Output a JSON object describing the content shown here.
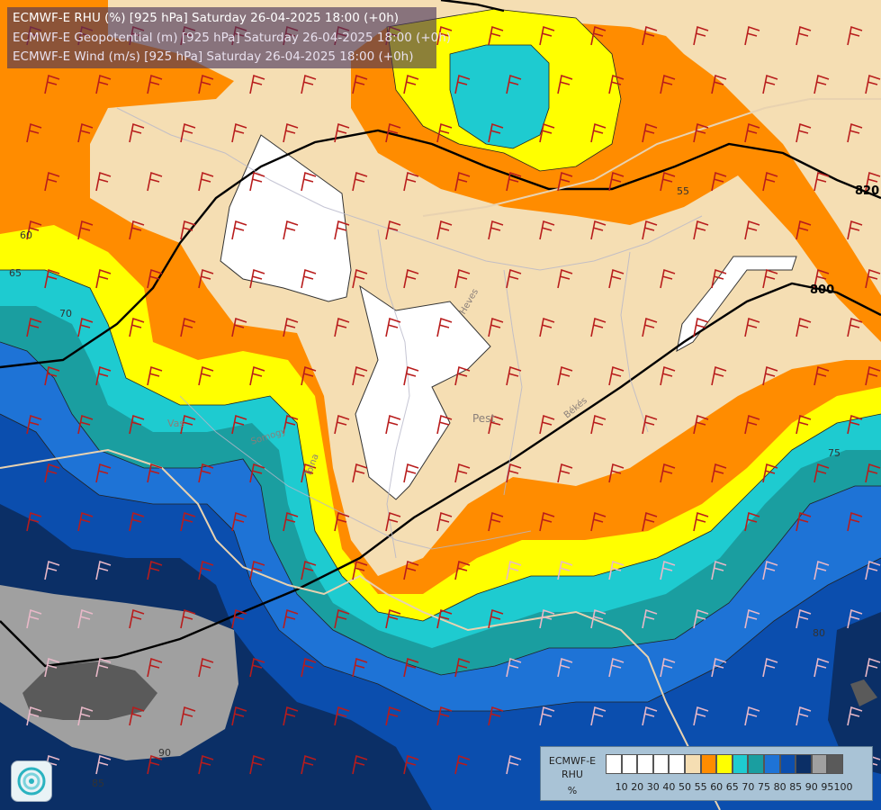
{
  "header": {
    "line1": "ECMWF-E RHU (%) [925 hPa] Saturday 26-04-2025 18:00 (+0h)",
    "line2": "ECMWF-E Geopotential (m) [925 hPa] Saturday 26-04-2025 18:00 (+0h)",
    "line3": "ECMWF-E Wind (m/s) [925 hPa] Saturday 26-04-2025 18:00 (+0h)"
  },
  "legend": {
    "title1": "ECMWF-E",
    "title2": "RHU",
    "title3": "%",
    "ticks": [
      "10",
      "20",
      "30",
      "40",
      "50",
      "55",
      "60",
      "65",
      "70",
      "75",
      "80",
      "85",
      "90",
      "95",
      "100"
    ],
    "colors": [
      "#ffffff",
      "#ffffff",
      "#ffffff",
      "#ffffff",
      "#ffffff",
      "#f5deb3",
      "#ff8c00",
      "#ffff00",
      "#1ecbd0",
      "#1a9ea0",
      "#1e73d6",
      "#0b4eae",
      "#0b2f66",
      "#a0a0a0",
      "#5a5a5a"
    ]
  },
  "contour_labels": {
    "geo_820": "820",
    "geo_800": "800",
    "rhu_55": "55",
    "rhu_60": "60",
    "rhu_65": "65",
    "rhu_70": "70",
    "rhu_75": "75",
    "rhu_80": "80",
    "rhu_90": "90",
    "rhu_85": "85"
  },
  "place_labels": {
    "pest": "Pest",
    "vas": "Vas",
    "heves": "Heves",
    "somogy": "Somogy",
    "tolna": "Tolna",
    "bekes": "Békés"
  },
  "map_colors": {
    "rhu_50": "#f5deb3",
    "rhu_55": "#ff8c00",
    "rhu_60": "#ffff00",
    "rhu_65": "#1ecbd0",
    "rhu_70": "#1a9ea0",
    "rhu_75": "#1e73d6",
    "rhu_80": "#0b4eae",
    "rhu_85": "#0b2f66",
    "rhu_90": "#a0a0a0",
    "rhu_95": "#5a5a5a",
    "dry": "#ffffff",
    "wind_barb": "#b81c1c"
  }
}
